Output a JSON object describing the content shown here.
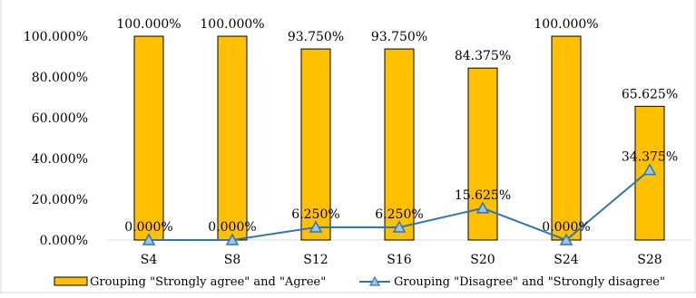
{
  "chart_data": {
    "type": "bar",
    "categories": [
      "S4",
      "S8",
      "S12",
      "S16",
      "S20",
      "S24",
      "S28"
    ],
    "series": [
      {
        "name": "Grouping \"Strongly agree\" and \"Agree\"",
        "type": "bar",
        "values": [
          100.0,
          100.0,
          93.75,
          93.75,
          84.375,
          100.0,
          65.625
        ],
        "labels": [
          "100.000%",
          "100.000%",
          "93.750%",
          "93.750%",
          "84.375%",
          "100.000%",
          "65.625%"
        ],
        "color": "#FFC000",
        "stroke": "#000000"
      },
      {
        "name": "Grouping \"Disagree\" and \"Strongly disagree\"",
        "type": "line",
        "values": [
          0.0,
          0.0,
          6.25,
          6.25,
          15.625,
          0.0,
          34.375
        ],
        "labels": [
          "0.000%",
          "0.000%",
          "6.250%",
          "6.250%",
          "15.625%",
          "0.000%",
          "34.375%"
        ],
        "color": "#2E75B6",
        "marker": "triangle"
      }
    ],
    "y_ticks": [
      "0.000%",
      "20.000%",
      "40.000%",
      "60.000%",
      "80.000%",
      "100.000%"
    ],
    "ylim": [
      0,
      100
    ],
    "grid": false,
    "legend": "bottom",
    "title": "",
    "xlabel": "",
    "ylabel": ""
  }
}
